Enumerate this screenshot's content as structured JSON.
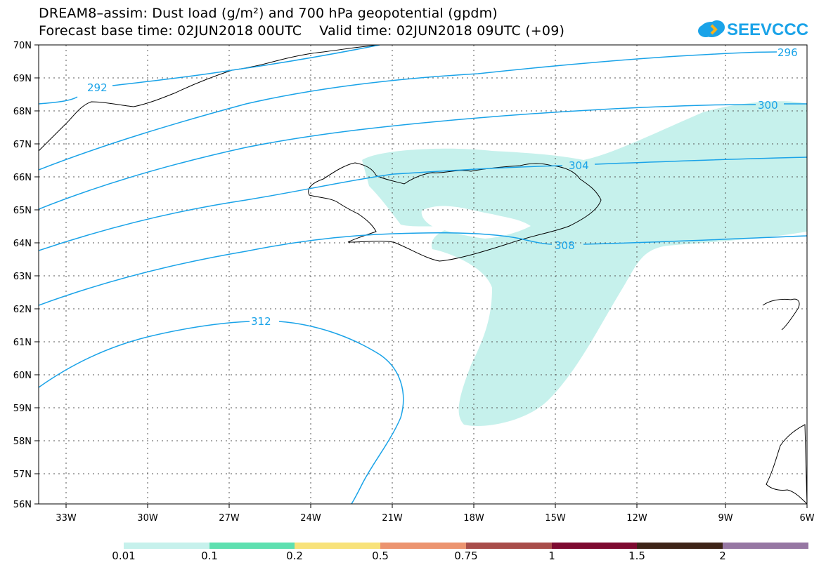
{
  "header": {
    "title_line1": "DREAM8–assim: Dust load (g/m²) and 700 hPa geopotential (gpdm)",
    "title_line2": "Forecast base time: 02JUN2018 00UTC    Valid time: 02JUN2018 09UTC (+09)",
    "logo_text": "SEEVCCC"
  },
  "map": {
    "lon_labels": [
      "33W",
      "30W",
      "27W",
      "24W",
      "21W",
      "18W",
      "15W",
      "12W",
      "9W",
      "6W"
    ],
    "lat_labels": [
      "70N",
      "69N",
      "68N",
      "67N",
      "66N",
      "65N",
      "64N",
      "63N",
      "62N",
      "61N",
      "60N",
      "59N",
      "58N",
      "57N",
      "56N"
    ],
    "contour_labels": [
      "292",
      "296",
      "300",
      "304",
      "308",
      "312"
    ],
    "colors": {
      "contour": "#1aa3e8",
      "dust_fill": "#c6f1ec",
      "coast": "#000000"
    }
  },
  "colorbar": {
    "labels": [
      "0.01",
      "0.1",
      "0.2",
      "0.5",
      "0.75",
      "1",
      "1.5",
      "2"
    ],
    "colors": [
      "#c6f1ec",
      "#5ee0b0",
      "#f8e27a",
      "#ec9470",
      "#a84d4a",
      "#7d0a30",
      "#3e2418",
      "#9677a3"
    ]
  }
}
